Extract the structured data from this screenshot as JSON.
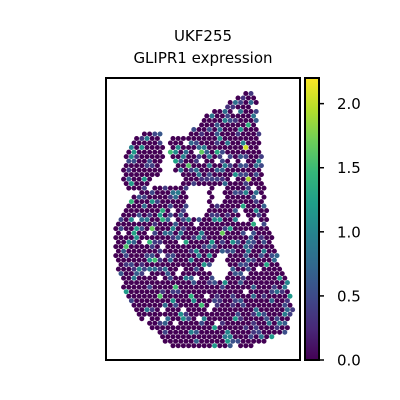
{
  "chart_data": {
    "type": "scatter",
    "subtype": "spatial-hex-expression",
    "title_line1": "UKF255",
    "title_line2": "GLIPR1 expression",
    "xlabel": "",
    "ylabel": "",
    "axes_ticks_visible": false,
    "grid": false,
    "colormap": "viridis",
    "colorbar": {
      "placement": "right",
      "range": [
        0.0,
        2.2
      ],
      "ticks": [
        0.0,
        0.5,
        1.0,
        1.5,
        2.0
      ],
      "tick_labels": [
        "0.0",
        "0.5",
        "1.0",
        "1.5",
        "2.0"
      ]
    },
    "value_summary": {
      "dominant_value": 0.0,
      "typical_nonzero_range": [
        0.4,
        1.3
      ],
      "max_value": 2.2
    },
    "colors": [
      "#440154",
      "#482878",
      "#3e4989",
      "#31688e",
      "#26828e",
      "#1f9e89",
      "#35b779",
      "#6ece58",
      "#b5de2b",
      "#fde725"
    ]
  }
}
